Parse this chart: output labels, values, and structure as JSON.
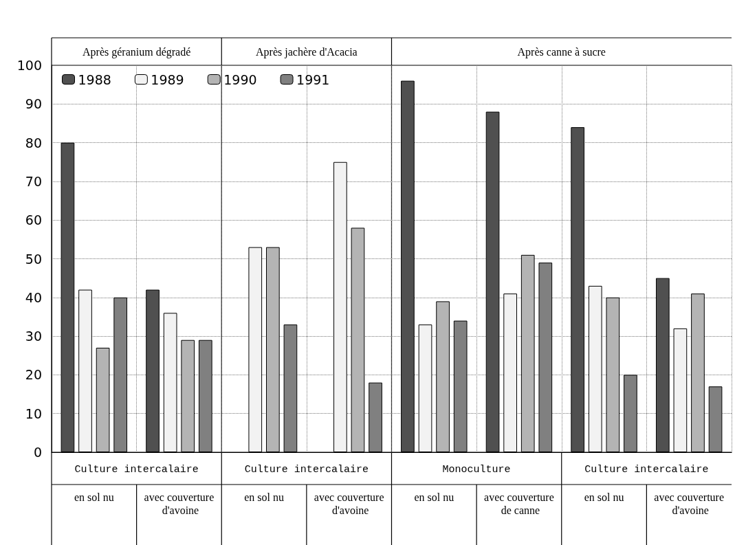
{
  "chart_data": {
    "type": "bar",
    "categories": [
      "en sol nu",
      "avec couverture d'avoine",
      "en sol nu",
      "avec couverture d'avoine",
      "en sol nu",
      "avec couverture de canne",
      "en sol nu",
      "avec couverture d'avoine"
    ],
    "series": [
      {
        "name": "1988",
        "color": "#505050",
        "values": [
          80,
          42,
          null,
          null,
          96,
          88,
          84,
          45
        ]
      },
      {
        "name": "1989",
        "color": "#f2f2f2",
        "values": [
          42,
          36,
          53,
          75,
          33,
          41,
          43,
          32
        ]
      },
      {
        "name": "1990",
        "color": "#b4b4b4",
        "values": [
          27,
          29,
          53,
          58,
          39,
          51,
          40,
          41
        ]
      },
      {
        "name": "1991",
        "color": "#808080",
        "values": [
          40,
          29,
          33,
          18,
          34,
          49,
          20,
          17
        ]
      }
    ],
    "annotations": [
      "Après géranium dégradé",
      "Après jachère d'Acacia",
      "Après canne à sucre",
      "Culture intercalaire",
      "Culture intercalaire",
      "Monoculture",
      "Culture intercalaire"
    ],
    "ylim": [
      0,
      100
    ],
    "yticks": [
      0,
      10,
      20,
      30,
      40,
      50,
      60,
      70,
      80,
      90,
      100
    ],
    "grid": true,
    "legend": "top left"
  }
}
